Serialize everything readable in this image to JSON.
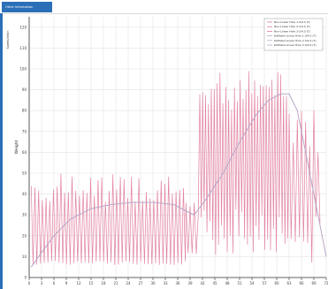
{
  "window": {
    "tab_label": "Other information"
  },
  "chart_data": {
    "type": "line",
    "title": "",
    "xlabel": "",
    "ylabel": "Weight",
    "y_secondary_label": "Speed/dmin",
    "xlim": [
      0,
      72
    ],
    "ylim": [
      0,
      125
    ],
    "x_ticks": [
      "0",
      "3",
      "6",
      "9",
      "12",
      "15",
      "18",
      "21",
      "24",
      "27",
      "30",
      "33",
      "36",
      "39",
      "42",
      "45",
      "48",
      "51",
      "54",
      "57",
      "60",
      "63",
      "66",
      "69",
      "72"
    ],
    "y_ticks": [
      "0",
      "10",
      "20",
      "30",
      "40",
      "50",
      "60",
      "70",
      "80",
      "90",
      "100",
      "110",
      "120"
    ],
    "grid": true,
    "legend_position": "top-right",
    "colors": {
      "raw": "#e07a9c",
      "smooth": "#b8a8c8",
      "axis": "#333333",
      "grid": "#e4e4e4"
    },
    "legend": [
      "Non-Linear Hole 1-3/4.0 (T)",
      "Non-Linear Hole 2-3/4.0 (T)",
      "Non-Linear Hole 3-3/4.0 (T)",
      "Deflated Linear Hole 1-3/4.0 (T)",
      "Deflated Linear Hole 2-3/4.0 (T)",
      "Deflated Linear Hole 3-3/4.0 (T)"
    ],
    "series": [
      {
        "kind": "raw",
        "segments": [
          {
            "x_start": 0.5,
            "x_end": 38,
            "low": [
              6,
              8
            ],
            "high": [
              36,
              50
            ],
            "step": 0.45
          },
          {
            "x_start": 38,
            "x_end": 41,
            "low": [
              10,
              12
            ],
            "high": [
              30,
              36
            ],
            "step": 0.5
          },
          {
            "x_start": 41,
            "x_end": 63,
            "low": [
              10,
              35
            ],
            "high": [
              80,
              100
            ],
            "step": 0.35
          },
          {
            "x_start": 63,
            "x_end": 70.5,
            "low": [
              5,
              30
            ],
            "high": [
              60,
              90
            ],
            "step": 0.5
          }
        ]
      },
      {
        "kind": "smooth",
        "x": [
          0.5,
          3,
          6,
          10,
          15,
          20,
          25,
          30,
          35,
          38,
          40,
          43,
          47,
          51,
          55,
          58,
          61,
          63,
          65,
          67,
          69,
          71,
          72
        ],
        "y": [
          5,
          12,
          20,
          28,
          33,
          35,
          36,
          36,
          35,
          32,
          30,
          38,
          50,
          65,
          78,
          85,
          88,
          88,
          80,
          60,
          40,
          20,
          10
        ]
      }
    ]
  }
}
